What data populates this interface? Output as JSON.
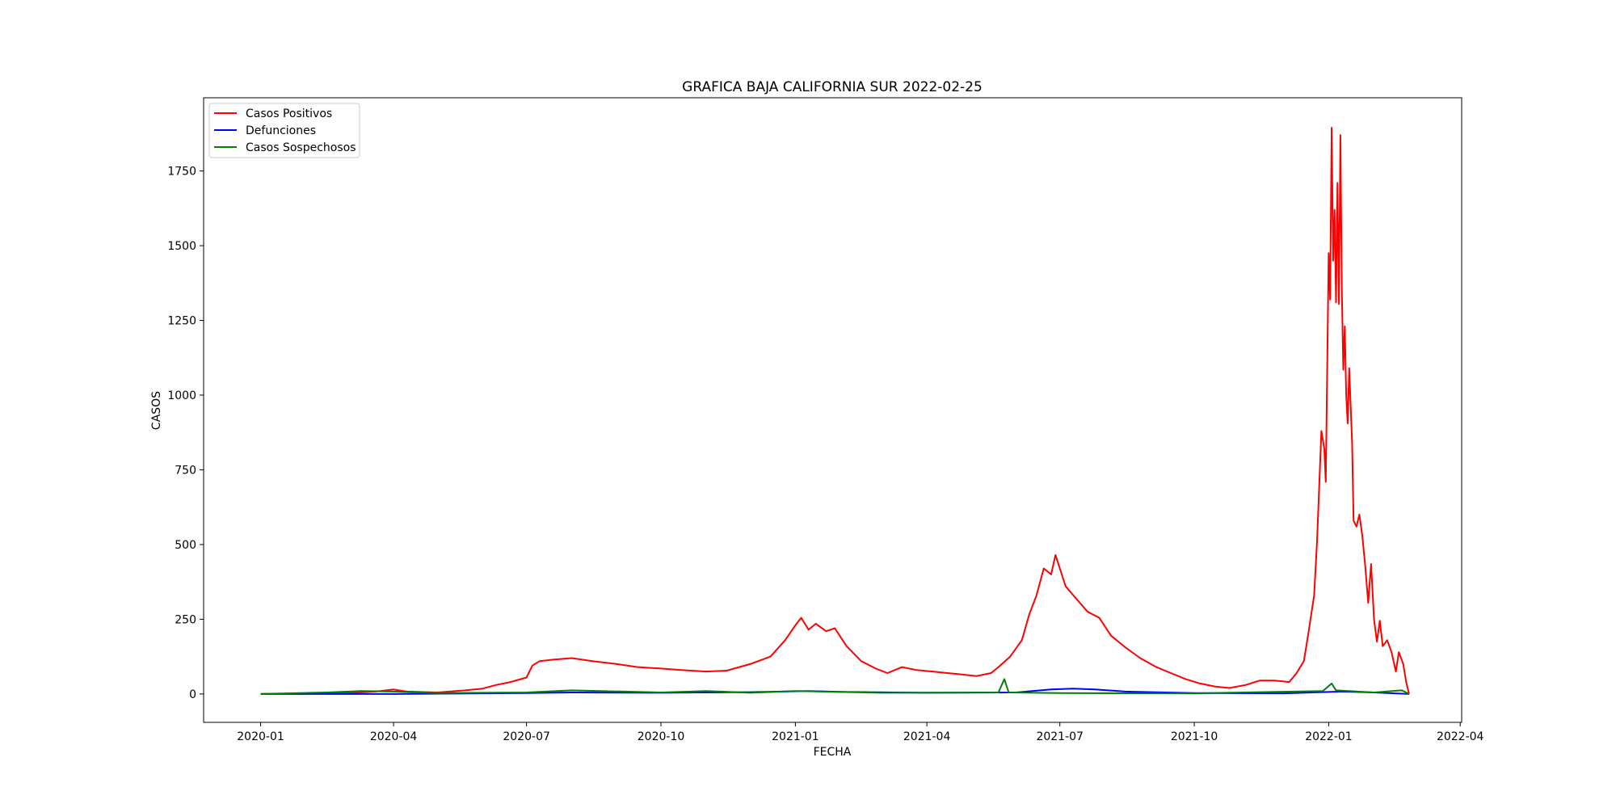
{
  "chart_data": {
    "type": "line",
    "title": "GRAFICA BAJA CALIFORNIA SUR 2022-02-25",
    "xlabel": "FECHA",
    "ylabel": "CASOS",
    "xlim": [
      "2019-11-23",
      "2022-04-02"
    ],
    "ylim": [
      -95,
      1995
    ],
    "x_ticks": [
      "2020-01",
      "2020-04",
      "2020-07",
      "2020-10",
      "2021-01",
      "2021-04",
      "2021-07",
      "2021-10",
      "2022-01",
      "2022-04"
    ],
    "y_ticks": [
      0,
      250,
      500,
      750,
      1000,
      1250,
      1500,
      1750
    ],
    "grid": false,
    "legend_position": "upper-left",
    "series": [
      {
        "name": "Casos Positivos",
        "color": "#ff0000",
        "points": [
          [
            "2020-01-01",
            0
          ],
          [
            "2020-02-01",
            2
          ],
          [
            "2020-03-01",
            3
          ],
          [
            "2020-03-20",
            8
          ],
          [
            "2020-04-01",
            15
          ],
          [
            "2020-04-10",
            8
          ],
          [
            "2020-05-01",
            5
          ],
          [
            "2020-05-20",
            12
          ],
          [
            "2020-06-01",
            18
          ],
          [
            "2020-06-10",
            30
          ],
          [
            "2020-06-20",
            40
          ],
          [
            "2020-07-01",
            55
          ],
          [
            "2020-07-05",
            95
          ],
          [
            "2020-07-10",
            110
          ],
          [
            "2020-07-20",
            115
          ],
          [
            "2020-08-01",
            120
          ],
          [
            "2020-08-15",
            110
          ],
          [
            "2020-09-01",
            100
          ],
          [
            "2020-09-15",
            90
          ],
          [
            "2020-10-01",
            85
          ],
          [
            "2020-10-15",
            80
          ],
          [
            "2020-11-01",
            75
          ],
          [
            "2020-11-15",
            78
          ],
          [
            "2020-12-01",
            100
          ],
          [
            "2020-12-15",
            125
          ],
          [
            "2020-12-25",
            180
          ],
          [
            "2021-01-01",
            230
          ],
          [
            "2021-01-05",
            255
          ],
          [
            "2021-01-10",
            215
          ],
          [
            "2021-01-15",
            235
          ],
          [
            "2021-01-22",
            210
          ],
          [
            "2021-01-28",
            220
          ],
          [
            "2021-02-05",
            160
          ],
          [
            "2021-02-15",
            110
          ],
          [
            "2021-02-25",
            85
          ],
          [
            "2021-03-05",
            70
          ],
          [
            "2021-03-15",
            90
          ],
          [
            "2021-03-25",
            80
          ],
          [
            "2021-04-05",
            75
          ],
          [
            "2021-04-15",
            70
          ],
          [
            "2021-04-25",
            65
          ],
          [
            "2021-05-05",
            60
          ],
          [
            "2021-05-15",
            70
          ],
          [
            "2021-05-20",
            90
          ],
          [
            "2021-05-28",
            125
          ],
          [
            "2021-06-05",
            180
          ],
          [
            "2021-06-10",
            265
          ],
          [
            "2021-06-15",
            330
          ],
          [
            "2021-06-20",
            420
          ],
          [
            "2021-06-25",
            400
          ],
          [
            "2021-06-28",
            465
          ],
          [
            "2021-07-05",
            360
          ],
          [
            "2021-07-12",
            320
          ],
          [
            "2021-07-20",
            275
          ],
          [
            "2021-07-28",
            255
          ],
          [
            "2021-08-05",
            195
          ],
          [
            "2021-08-15",
            155
          ],
          [
            "2021-08-25",
            120
          ],
          [
            "2021-09-05",
            90
          ],
          [
            "2021-09-15",
            70
          ],
          [
            "2021-09-25",
            50
          ],
          [
            "2021-10-05",
            35
          ],
          [
            "2021-10-15",
            25
          ],
          [
            "2021-10-25",
            20
          ],
          [
            "2021-11-05",
            30
          ],
          [
            "2021-11-15",
            45
          ],
          [
            "2021-11-25",
            45
          ],
          [
            "2021-12-05",
            40
          ],
          [
            "2021-12-10",
            70
          ],
          [
            "2021-12-15",
            110
          ],
          [
            "2021-12-18",
            200
          ],
          [
            "2021-12-22",
            330
          ],
          [
            "2021-12-24",
            510
          ],
          [
            "2021-12-27",
            880
          ],
          [
            "2021-12-29",
            820
          ],
          [
            "2021-12-30",
            710
          ],
          [
            "2022-01-01",
            1475
          ],
          [
            "2022-01-02",
            1320
          ],
          [
            "2022-01-03",
            1895
          ],
          [
            "2022-01-04",
            1450
          ],
          [
            "2022-01-05",
            1620
          ],
          [
            "2022-01-06",
            1310
          ],
          [
            "2022-01-07",
            1710
          ],
          [
            "2022-01-08",
            1305
          ],
          [
            "2022-01-09",
            1870
          ],
          [
            "2022-01-10",
            1350
          ],
          [
            "2022-01-11",
            1085
          ],
          [
            "2022-01-12",
            1230
          ],
          [
            "2022-01-13",
            1000
          ],
          [
            "2022-01-14",
            905
          ],
          [
            "2022-01-15",
            1090
          ],
          [
            "2022-01-17",
            840
          ],
          [
            "2022-01-18",
            580
          ],
          [
            "2022-01-20",
            560
          ],
          [
            "2022-01-22",
            600
          ],
          [
            "2022-01-24",
            530
          ],
          [
            "2022-01-26",
            430
          ],
          [
            "2022-01-28",
            305
          ],
          [
            "2022-01-30",
            435
          ],
          [
            "2022-02-01",
            250
          ],
          [
            "2022-02-03",
            175
          ],
          [
            "2022-02-05",
            245
          ],
          [
            "2022-02-07",
            160
          ],
          [
            "2022-02-10",
            180
          ],
          [
            "2022-02-13",
            140
          ],
          [
            "2022-02-16",
            75
          ],
          [
            "2022-02-18",
            140
          ],
          [
            "2022-02-21",
            100
          ],
          [
            "2022-02-23",
            40
          ],
          [
            "2022-02-25",
            0
          ]
        ]
      },
      {
        "name": "Defunciones",
        "color": "#0000ff",
        "points": [
          [
            "2020-01-01",
            0
          ],
          [
            "2020-04-01",
            0
          ],
          [
            "2020-07-01",
            3
          ],
          [
            "2020-08-01",
            5
          ],
          [
            "2020-10-01",
            4
          ],
          [
            "2020-12-01",
            6
          ],
          [
            "2021-01-10",
            10
          ],
          [
            "2021-02-01",
            7
          ],
          [
            "2021-04-01",
            4
          ],
          [
            "2021-06-01",
            5
          ],
          [
            "2021-06-25",
            15
          ],
          [
            "2021-07-10",
            18
          ],
          [
            "2021-07-25",
            15
          ],
          [
            "2021-08-15",
            8
          ],
          [
            "2021-10-01",
            3
          ],
          [
            "2021-12-01",
            2
          ],
          [
            "2022-01-10",
            8
          ],
          [
            "2022-02-01",
            5
          ],
          [
            "2022-02-25",
            0
          ]
        ]
      },
      {
        "name": "Casos Sospechosos",
        "color": "#008000",
        "points": [
          [
            "2020-01-01",
            0
          ],
          [
            "2020-02-15",
            5
          ],
          [
            "2020-03-10",
            10
          ],
          [
            "2020-04-01",
            8
          ],
          [
            "2020-05-01",
            3
          ],
          [
            "2020-07-01",
            5
          ],
          [
            "2020-08-01",
            12
          ],
          [
            "2020-10-01",
            5
          ],
          [
            "2020-11-01",
            10
          ],
          [
            "2020-12-01",
            4
          ],
          [
            "2021-01-01",
            10
          ],
          [
            "2021-03-01",
            4
          ],
          [
            "2021-05-20",
            5
          ],
          [
            "2021-05-24",
            50
          ],
          [
            "2021-05-27",
            5
          ],
          [
            "2021-07-01",
            3
          ],
          [
            "2021-10-01",
            2
          ],
          [
            "2021-12-28",
            10
          ],
          [
            "2022-01-03",
            35
          ],
          [
            "2022-01-06",
            12
          ],
          [
            "2022-02-01",
            5
          ],
          [
            "2022-02-20",
            12
          ],
          [
            "2022-02-25",
            0
          ]
        ]
      }
    ]
  }
}
